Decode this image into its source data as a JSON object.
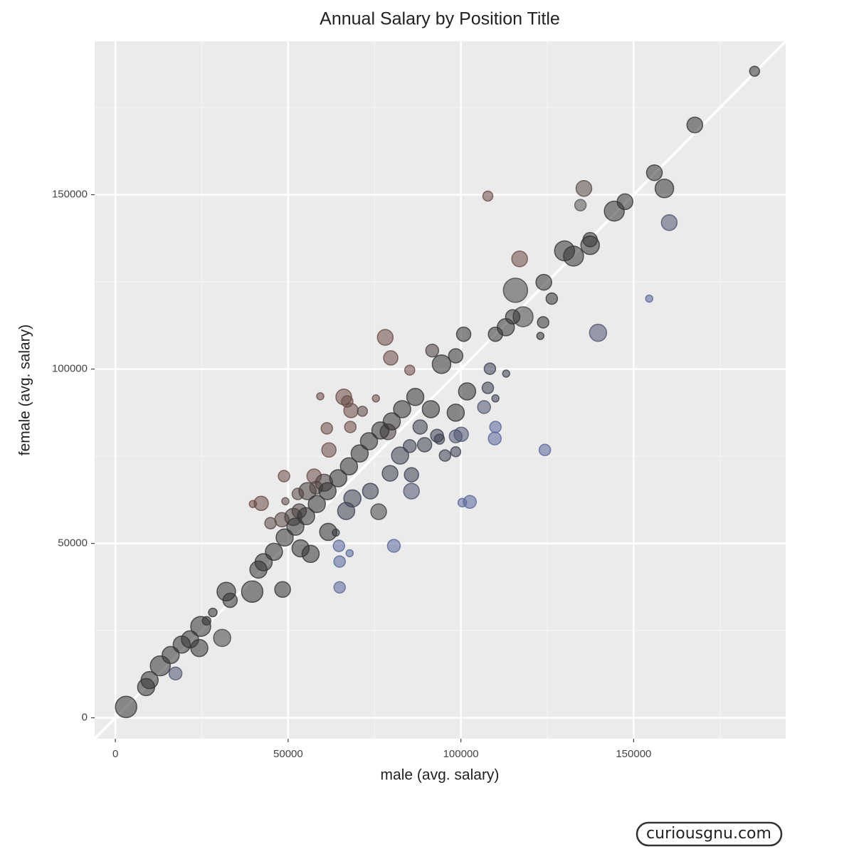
{
  "chart_data": {
    "type": "scatter",
    "title": "Annual Salary by Position Title",
    "x_label": "male (avg. salary)",
    "y_label": "female (avg. salary)",
    "watermark": "curiousgnu.com",
    "xlim": [
      -6000,
      194000
    ],
    "ylim": [
      -6000,
      194000
    ],
    "xticks": [
      0,
      50000,
      100000,
      150000
    ],
    "yticks": [
      0,
      50000,
      100000,
      150000
    ],
    "xminor": [
      25000,
      75000,
      125000,
      175000
    ],
    "yminor": [
      25000,
      75000,
      125000,
      175000
    ],
    "grid": true,
    "identity_line": true,
    "x": [
      185000,
      167700,
      156000,
      158900,
      135600,
      134600,
      107800,
      144400,
      147500,
      160300,
      137400,
      137400,
      130000,
      132600,
      117000,
      124000,
      115800,
      126300,
      154500,
      139700,
      123800,
      123000,
      118000,
      113000,
      110000,
      100800,
      78100,
      79700,
      85200,
      91700,
      94400,
      98500,
      108400,
      113100,
      107800,
      110000,
      106700,
      110000,
      109800,
      124300,
      102600,
      100400,
      80600,
      64900,
      64900,
      64700,
      67800,
      63800,
      59300,
      66100,
      67100,
      75400,
      68200,
      71500,
      68000,
      61200,
      78900,
      61800,
      57500,
      48800,
      58100,
      42200,
      39800,
      49200,
      52800,
      55600,
      60400,
      44900,
      48200,
      51500,
      53200,
      85700,
      76200,
      66800,
      68600,
      73800,
      79500,
      85700,
      82400,
      85200,
      89500,
      93100,
      98500,
      100100,
      98500,
      95400,
      93800,
      88200,
      98500,
      101800,
      91300,
      86800,
      83000,
      80000,
      76700,
      73400,
      70700,
      67600,
      64500,
      61400,
      58300,
      55200,
      52100,
      49000,
      45900,
      42900,
      41400,
      39600,
      48400,
      56500,
      61600,
      53600,
      32100,
      33200,
      30900,
      28200,
      26400,
      24700,
      24300,
      21600,
      19200,
      17400,
      16000,
      13000,
      9900,
      8900,
      3100,
      115000
    ],
    "values": [
      185400,
      170000,
      156300,
      151800,
      151800,
      147000,
      149600,
      145300,
      148000,
      142000,
      135500,
      137100,
      133900,
      132400,
      131600,
      124900,
      122600,
      120200,
      120200,
      110400,
      113400,
      109500,
      115000,
      112000,
      110000,
      110000,
      109100,
      103200,
      99700,
      105300,
      101400,
      103800,
      100100,
      98700,
      94600,
      91600,
      89100,
      83400,
      80100,
      76800,
      61900,
      61700,
      49300,
      37400,
      44800,
      49300,
      47200,
      53100,
      92200,
      92000,
      90700,
      91600,
      88100,
      87900,
      83400,
      83000,
      82000,
      76800,
      69300,
      69300,
      66000,
      61500,
      61300,
      62100,
      64200,
      65000,
      67400,
      55800,
      56800,
      57600,
      59300,
      65000,
      59100,
      59300,
      62900,
      65000,
      70100,
      69700,
      75200,
      77900,
      78300,
      80900,
      80700,
      81300,
      76300,
      75200,
      79900,
      83400,
      87500,
      93600,
      88500,
      92000,
      88500,
      85000,
      82400,
      79300,
      75800,
      72100,
      68700,
      65000,
      61300,
      57800,
      54800,
      51700,
      47600,
      44600,
      42500,
      36200,
      36800,
      47000,
      53300,
      48600,
      36200,
      33700,
      22900,
      30200,
      27800,
      26200,
      20000,
      22500,
      21000,
      12700,
      18000,
      14900,
      10800,
      8800,
      3100,
      115000
    ],
    "sizes": [
      7,
      11,
      11,
      13,
      11,
      8,
      7,
      14,
      11,
      11,
      13,
      10,
      14,
      14,
      11,
      11,
      17,
      8,
      5,
      12,
      8,
      5,
      14,
      12,
      10,
      10,
      11,
      10,
      7,
      9,
      13,
      10,
      8,
      5,
      8,
      5,
      9,
      8,
      9,
      8,
      9,
      6,
      9,
      8,
      8,
      8,
      5,
      5,
      5,
      11,
      8,
      5,
      10,
      7,
      8,
      8,
      11,
      10,
      10,
      8,
      9,
      10,
      5,
      5,
      8,
      12,
      12,
      8,
      10,
      12,
      10,
      11,
      11,
      12,
      12,
      11,
      11,
      10,
      12,
      9,
      10,
      9,
      9,
      10,
      7,
      8,
      7,
      10,
      12,
      12,
      12,
      12,
      12,
      12,
      12,
      12,
      12,
      12,
      12,
      12,
      12,
      12,
      12,
      12,
      12,
      12,
      12,
      15,
      11,
      12,
      12,
      12,
      13,
      10,
      12,
      6,
      6,
      14,
      12,
      12,
      12,
      9,
      12,
      14,
      12,
      12,
      15,
      10
    ],
    "colors": [
      "#333333",
      "#333333",
      "#333333",
      "#333333",
      "#5a4846",
      "#555555",
      "#6b4a44",
      "#333333",
      "#333333",
      "#4e5470",
      "#333333",
      "#333333",
      "#333333",
      "#333333",
      "#6b4a44",
      "#333333",
      "#444444",
      "#333333",
      "#56669a",
      "#4e5470",
      "#333333",
      "#333333",
      "#444444",
      "#333333",
      "#333333",
      "#333333",
      "#6b4a44",
      "#6b4a44",
      "#6b4a44",
      "#4a3e3e",
      "#333333",
      "#333333",
      "#3a3e50",
      "#3a3e50",
      "#3a3e50",
      "#3a3e50",
      "#4e5470",
      "#56669a",
      "#56669a",
      "#56669a",
      "#56669a",
      "#56669a",
      "#56669a",
      "#56669a",
      "#56669a",
      "#56669a",
      "#56669a",
      "#3a3e50",
      "#6b4a44",
      "#6b4a44",
      "#6b4a44",
      "#6b4a44",
      "#6b4a44",
      "#5a4846",
      "#6b4a44",
      "#6b4a44",
      "#4a3e3e",
      "#6b4a44",
      "#6b4a44",
      "#6b4a44",
      "#5a4846",
      "#6b4a44",
      "#6b4a44",
      "#5a4846",
      "#5a4846",
      "#4a3e3e",
      "#4a3e3e",
      "#5a4846",
      "#5a4846",
      "#4a3e3e",
      "#4a3e3e",
      "#4e5470",
      "#444444",
      "#3a3e50",
      "#3a3e50",
      "#3a3e50",
      "#3a3e50",
      "#3a3e50",
      "#3a3e50",
      "#3a3e50",
      "#3a3e50",
      "#3a3e50",
      "#4e5470",
      "#4e5470",
      "#3a3e50",
      "#3a3e50",
      "#3a3e50",
      "#3a3e50",
      "#333333",
      "#333333",
      "#333333",
      "#333333",
      "#333333",
      "#333333",
      "#333333",
      "#333333",
      "#333333",
      "#333333",
      "#333333",
      "#333333",
      "#333333",
      "#333333",
      "#333333",
      "#333333",
      "#333333",
      "#333333",
      "#333333",
      "#333333",
      "#333333",
      "#333333",
      "#333333",
      "#333333",
      "#333333",
      "#333333",
      "#444444",
      "#333333",
      "#333333",
      "#333333",
      "#333333",
      "#333333",
      "#333333",
      "#4e5470",
      "#333333",
      "#333333",
      "#333333",
      "#333333",
      "#333333",
      "#333333"
    ]
  }
}
